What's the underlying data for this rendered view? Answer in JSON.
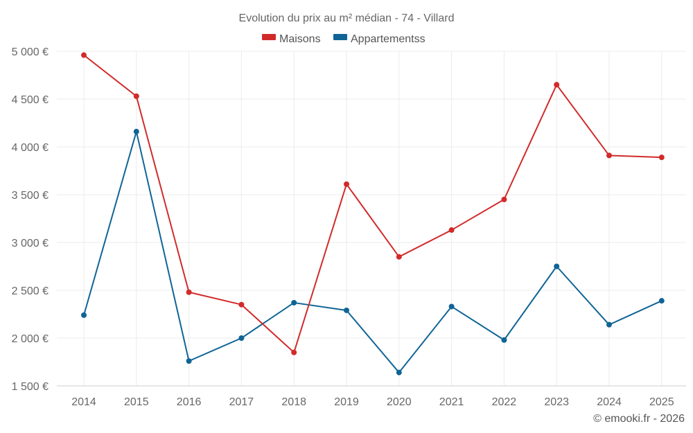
{
  "chart_data": {
    "type": "line",
    "title": "Evolution du prix au m² médian - 74 - Villard",
    "categories": [
      "2014",
      "2015",
      "2016",
      "2017",
      "2018",
      "2019",
      "2020",
      "2021",
      "2022",
      "2023",
      "2024",
      "2025"
    ],
    "series": [
      {
        "name": "Maisons",
        "color": "#d22a2a",
        "values": [
          4960,
          4530,
          2480,
          2350,
          1850,
          3610,
          2850,
          3130,
          3450,
          4650,
          3910,
          3890
        ]
      },
      {
        "name": "Appartementss",
        "color": "#0f6496",
        "values": [
          2240,
          4160,
          1760,
          2000,
          2370,
          2290,
          1640,
          2330,
          1980,
          2750,
          2140,
          2390
        ]
      }
    ],
    "ylim": [
      1500,
      5000
    ],
    "yticks": [
      1500,
      2000,
      2500,
      3000,
      3500,
      4000,
      4500,
      5000
    ],
    "ytick_labels": [
      "1 500 €",
      "2 000 €",
      "2 500 €",
      "3 000 €",
      "3 500 €",
      "4 000 €",
      "4 500 €",
      "5 000 €"
    ],
    "legend_position": "top-center",
    "grid": true
  },
  "credit": "© emooki.fr - 2026"
}
